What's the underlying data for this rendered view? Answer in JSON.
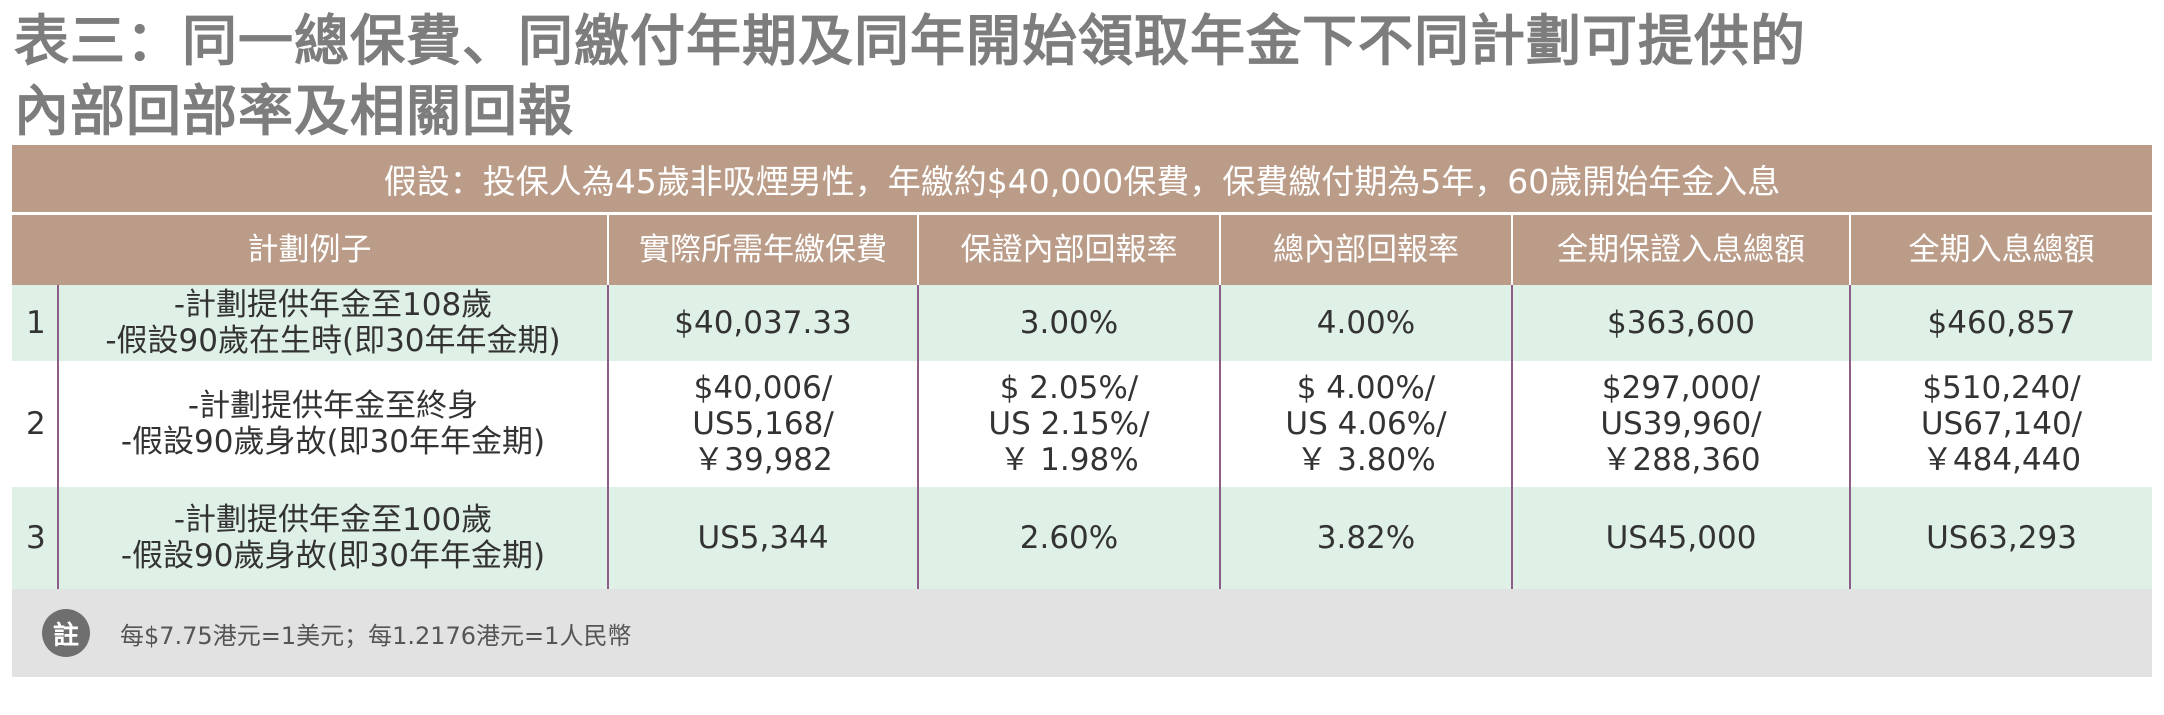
{
  "title": {
    "line1": "表三：同一總保費、同繳付年期及同年開始領取年金下不同計劃可提供的",
    "line2": "內部回部率及相關回報"
  },
  "assumption": "假設：投保人為45歲非吸煙男性，年繳約$40,000保費，保費繳付期為5年，60歲開始年金入息",
  "headers": [
    "計劃例子",
    "實際所需年繳保費",
    "保證內部回報率",
    "總內部回報率",
    "全期保證入息總額",
    "全期入息總額"
  ],
  "rows": [
    {
      "num": "1",
      "plan": [
        "-計劃提供年金至108歲",
        "-假設90歲在生時(即30年年金期)"
      ],
      "premium": [
        "$40,037.33"
      ],
      "guaranteed_irr": [
        "3.00%"
      ],
      "total_irr": [
        "4.00%"
      ],
      "guaranteed_income": [
        "$363,600"
      ],
      "total_income": [
        "$460,857"
      ]
    },
    {
      "num": "2",
      "plan": [
        "-計劃提供年金至終身",
        "-假設90歲身故(即30年年金期)"
      ],
      "premium": [
        "$40,006/",
        "US5,168/",
        "￥39,982"
      ],
      "guaranteed_irr": [
        "$ 2.05%/",
        "US 2.15%/",
        "￥ 1.98%"
      ],
      "total_irr": [
        "$ 4.00%/",
        "US 4.06%/",
        "￥ 3.80%"
      ],
      "guaranteed_income": [
        "$297,000/",
        "US39,960/",
        "￥288,360"
      ],
      "total_income": [
        "$510,240/",
        "US67,140/",
        "￥484,440"
      ]
    },
    {
      "num": "3",
      "plan": [
        "-計劃提供年金至100歲",
        "-假設90歲身故(即30年年金期)"
      ],
      "premium": [
        "US5,344"
      ],
      "guaranteed_irr": [
        "2.60%"
      ],
      "total_irr": [
        "3.82%"
      ],
      "guaranteed_income": [
        "US45,000"
      ],
      "total_income": [
        "US63,293"
      ]
    }
  ],
  "note": {
    "badge": "註",
    "text": "每$7.75港元=1美元；每1.2176港元=1人民幣"
  },
  "colors": {
    "header_bg": "#bb9c88",
    "row_tint": "#dff0e7",
    "divider": "#8b5d87",
    "note_bg": "#e2e2e2"
  }
}
